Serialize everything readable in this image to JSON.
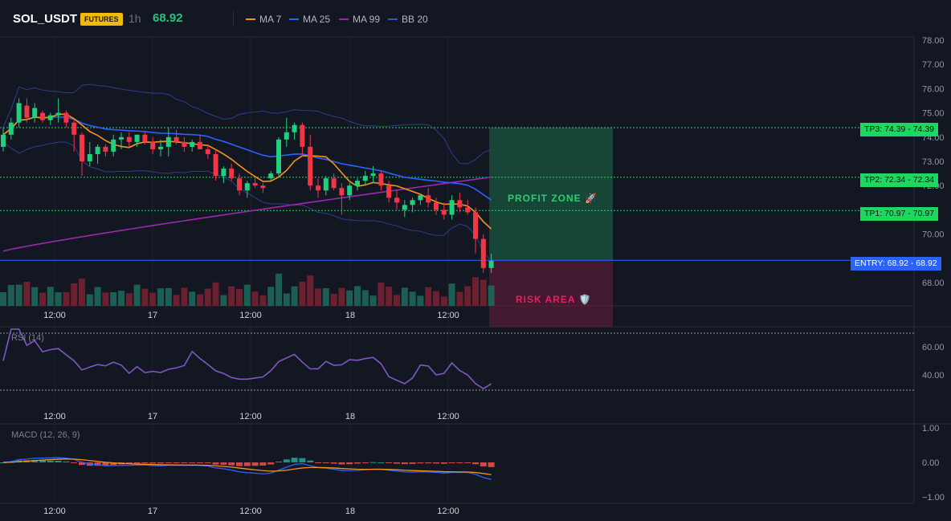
{
  "header": {
    "symbol": "SOL_USDT",
    "badge": "FUTURES",
    "timeframe": "1h",
    "price": "68.92",
    "legend": [
      {
        "label": "MA 7",
        "color": "#f7931a"
      },
      {
        "label": "MA 25",
        "color": "#2962ff"
      },
      {
        "label": "MA 99",
        "color": "#9c27b0"
      },
      {
        "label": "BB 20",
        "color": "#3a55b8"
      }
    ]
  },
  "colors": {
    "up": "#26a69a",
    "up_bright": "#1fd17c",
    "down": "#f23645",
    "tp_tag": "#1ed760",
    "entry_tag": "#2962ff",
    "profit_zone": "#1c6b4a",
    "risk_zone": "#6b1c3a",
    "rsi": "#7e57c2"
  },
  "levels": [
    {
      "name": "TP3",
      "price": 74.39,
      "tag": "TP3: 74.39",
      "right_label": "74.39"
    },
    {
      "name": "TP2",
      "price": 72.34,
      "tag": "TP2: 72.34",
      "right_label": "72.34"
    },
    {
      "name": "TP1",
      "price": 70.97,
      "tag": "TP1: 70.97",
      "right_label": "70.97"
    },
    {
      "name": "ENTRY",
      "price": 68.92,
      "tag": "ENTRY: 68.92",
      "right_label": "68.92"
    }
  ],
  "zones": {
    "profit": "PROFIT ZONE 🚀",
    "risk": "RISK AREA 🛡️"
  },
  "price_axis": [
    "78.00",
    "77.00",
    "76.00",
    "75.00",
    "74.00",
    "73.00",
    "72.00",
    "70.00",
    "68.00"
  ],
  "time_axis": [
    "12:00",
    "17",
    "12:00",
    "18",
    "12:00"
  ],
  "rsi_panel": {
    "title": "RSI (14)",
    "axis": [
      "60.00",
      "40.00"
    ]
  },
  "macd_panel": {
    "title": "MACD (12, 26, 9)",
    "axis": [
      "1.00",
      "0.00",
      "−1.00"
    ]
  },
  "chart_data": {
    "type": "candlestick",
    "ylim": [
      67.0,
      78.0
    ],
    "candles": [
      [
        73.6,
        74.4,
        73.4,
        74.1
      ],
      [
        74.1,
        74.8,
        73.9,
        74.6
      ],
      [
        74.6,
        75.6,
        74.4,
        75.4
      ],
      [
        75.3,
        75.6,
        74.6,
        74.8
      ],
      [
        74.8,
        75.4,
        74.6,
        75.2
      ],
      [
        75.0,
        75.1,
        74.6,
        74.7
      ],
      [
        74.7,
        75.0,
        74.5,
        74.9
      ],
      [
        74.9,
        75.6,
        74.6,
        75.0
      ],
      [
        75.0,
        75.1,
        74.4,
        74.6
      ],
      [
        74.6,
        74.7,
        73.4,
        74.1
      ],
      [
        74.1,
        74.2,
        72.4,
        73.0
      ],
      [
        73.0,
        73.8,
        72.8,
        73.3
      ],
      [
        73.3,
        73.7,
        72.9,
        73.6
      ],
      [
        73.6,
        73.7,
        73.2,
        73.4
      ],
      [
        73.4,
        74.1,
        73.2,
        73.9
      ],
      [
        73.9,
        74.2,
        73.5,
        74.0
      ],
      [
        74.0,
        74.2,
        73.6,
        73.8
      ],
      [
        73.8,
        74.1,
        73.6,
        74.1
      ],
      [
        74.1,
        74.2,
        73.7,
        73.8
      ],
      [
        73.8,
        74.0,
        73.3,
        73.5
      ],
      [
        73.5,
        73.9,
        73.2,
        73.6
      ],
      [
        73.6,
        74.4,
        73.2,
        74.0
      ],
      [
        74.0,
        74.3,
        73.7,
        73.8
      ],
      [
        73.8,
        74.0,
        73.4,
        73.6
      ],
      [
        73.6,
        73.9,
        73.4,
        73.8
      ],
      [
        73.8,
        74.1,
        73.5,
        73.5
      ],
      [
        73.5,
        73.7,
        73.1,
        73.3
      ],
      [
        73.3,
        73.5,
        72.2,
        72.4
      ],
      [
        72.4,
        72.8,
        72.1,
        72.7
      ],
      [
        72.7,
        72.9,
        72.2,
        72.3
      ],
      [
        72.3,
        72.5,
        71.6,
        71.8
      ],
      [
        71.8,
        72.2,
        71.5,
        72.1
      ],
      [
        72.1,
        72.3,
        71.9,
        72.0
      ],
      [
        72.0,
        72.1,
        71.7,
        71.9
      ],
      [
        72.3,
        72.6,
        72.2,
        72.5
      ],
      [
        72.5,
        74.0,
        72.4,
        73.9
      ],
      [
        73.9,
        74.8,
        73.6,
        74.2
      ],
      [
        74.2,
        74.6,
        73.9,
        74.5
      ],
      [
        74.5,
        74.6,
        73.2,
        73.6
      ],
      [
        73.6,
        74.1,
        71.8,
        72.0
      ],
      [
        72.0,
        72.3,
        71.5,
        71.8
      ],
      [
        71.8,
        72.4,
        71.6,
        72.3
      ],
      [
        72.3,
        72.5,
        71.8,
        71.9
      ],
      [
        71.9,
        72.1,
        70.8,
        71.6
      ],
      [
        71.6,
        72.1,
        71.4,
        72.0
      ],
      [
        72.0,
        72.3,
        71.8,
        72.2
      ],
      [
        72.2,
        72.6,
        72.0,
        72.4
      ],
      [
        72.4,
        72.8,
        72.1,
        72.5
      ],
      [
        72.5,
        72.6,
        71.8,
        72.0
      ],
      [
        72.0,
        72.2,
        71.3,
        71.5
      ],
      [
        71.5,
        71.8,
        71.0,
        71.3
      ],
      [
        71.0,
        71.4,
        70.7,
        71.2
      ],
      [
        71.2,
        71.5,
        70.9,
        71.4
      ],
      [
        71.4,
        71.6,
        71.2,
        71.6
      ],
      [
        71.6,
        71.9,
        71.1,
        71.3
      ],
      [
        71.3,
        71.5,
        70.8,
        71.0
      ],
      [
        71.0,
        71.3,
        70.6,
        70.8
      ],
      [
        70.8,
        71.6,
        70.6,
        71.4
      ],
      [
        71.4,
        71.7,
        70.9,
        71.1
      ],
      [
        71.1,
        71.4,
        70.8,
        70.9
      ],
      [
        70.9,
        71.1,
        69.2,
        69.8
      ],
      [
        69.8,
        70.0,
        68.4,
        68.6
      ],
      [
        68.6,
        69.2,
        68.4,
        68.9
      ]
    ]
  }
}
